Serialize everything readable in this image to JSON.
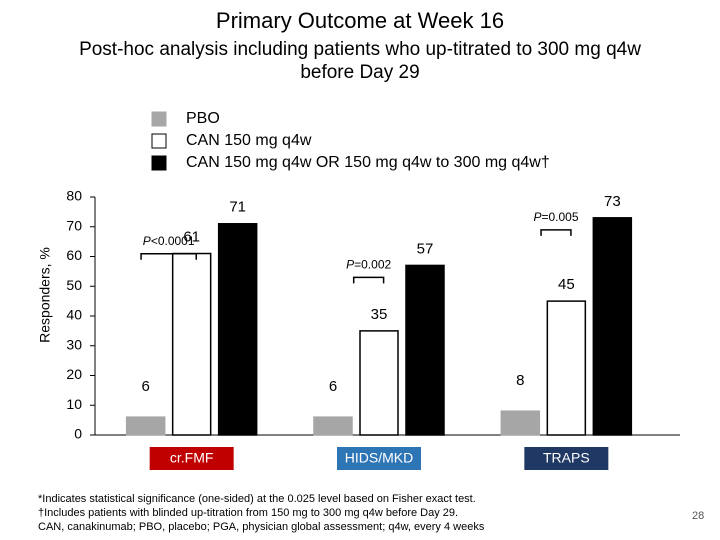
{
  "chart_data": {
    "type": "bar",
    "title": "Primary Outcome at Week 16",
    "subtitle": "Post-hoc analysis including patients who up-titrated to 300 mg q4w before Day 29",
    "y_label": "Responders, %",
    "categories": [
      "cr.FMF",
      "HIDS/MKD",
      "TRAPS"
    ],
    "category_colors": [
      "#c00000",
      "#2e75b6",
      "#1f3864"
    ],
    "series": [
      {
        "name": "PBO",
        "color": "#a6a6a6",
        "values": [
          6,
          6,
          8
        ]
      },
      {
        "name": "CAN 150 mg q4w",
        "color": "#ffffff",
        "values": [
          61,
          35,
          45
        ]
      },
      {
        "name": "CAN 150 mg q4w OR 150 mg q4w to 300 mg q4w†",
        "color": "#000000",
        "values": [
          71,
          57,
          73
        ]
      }
    ],
    "p_values": [
      "P<0.0001",
      "P=0.002",
      "P=0.005"
    ],
    "ylim": [
      0,
      80
    ],
    "yticks": [
      0,
      10,
      20,
      30,
      40,
      50,
      60,
      70,
      80
    ],
    "footnotes": [
      "*Indicates statistical significance (one-sided) at the 0.025 level based on Fisher exact test.",
      "†Includes patients with blinded up-titration from 150 mg to 300 mg q4w before Day 29.",
      "CAN, canakinumab; PBO, placebo; PGA, physician global assessment; q4w, every 4 weeks"
    ]
  },
  "page_number": "28"
}
